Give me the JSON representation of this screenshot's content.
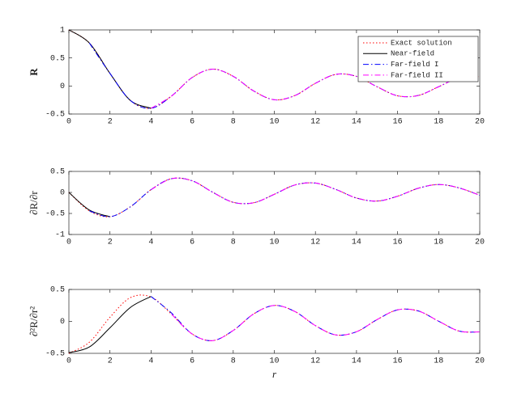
{
  "chart_data": [
    {
      "type": "line",
      "ylabel": "R",
      "legend": "upper right",
      "x": [
        0,
        1,
        2,
        3,
        4,
        5,
        6,
        7,
        8,
        9,
        10,
        11,
        12,
        13,
        14,
        15,
        16,
        17,
        18,
        19,
        20
      ],
      "xlim": [
        0,
        20
      ],
      "xticks": [
        0,
        2,
        4,
        6,
        8,
        10,
        12,
        14,
        16,
        18,
        20
      ],
      "ylim": [
        -0.5,
        1
      ],
      "yticks": [
        -0.5,
        0,
        0.5,
        1
      ],
      "series": [
        {
          "name": "Exact solution",
          "color": "#ff0000",
          "dash": "dotted",
          "values": [
            1,
            0.765,
            0.224,
            -0.26,
            -0.397,
            -0.178,
            0.151,
            0.3,
            0.172,
            -0.09,
            -0.246,
            -0.171,
            0.048,
            0.207,
            0.171,
            -0.014,
            -0.175,
            -0.17,
            -0.013,
            0.147,
            0.167
          ]
        },
        {
          "name": "Near-field",
          "color": "#000000",
          "dash": "solid",
          "values": [
            1,
            0.765,
            0.224,
            -0.26,
            -0.397,
            null,
            null,
            null,
            null,
            null,
            null,
            null,
            null,
            null,
            null,
            null,
            null,
            null,
            null,
            null,
            null
          ]
        },
        {
          "name": "Far-field I",
          "color": "#0000ff",
          "dash": "dashdot",
          "values": [
            null,
            0.765,
            0.224,
            -0.26,
            -0.397,
            -0.178,
            0.151,
            0.3,
            0.172,
            -0.09,
            -0.246,
            -0.171,
            0.048,
            0.207,
            0.171,
            -0.014,
            -0.175,
            -0.17,
            -0.013,
            0.147,
            0.167
          ]
        },
        {
          "name": "Far-field II",
          "color": "#ff00ff",
          "dash": "dashdot",
          "values": [
            null,
            null,
            null,
            null,
            -0.397,
            -0.178,
            0.151,
            0.3,
            0.172,
            -0.09,
            -0.246,
            -0.171,
            0.048,
            0.207,
            0.171,
            -0.014,
            -0.175,
            -0.17,
            -0.013,
            0.147,
            0.167
          ]
        }
      ]
    },
    {
      "type": "line",
      "ylabel": "∂R/∂r",
      "x": [
        0,
        1,
        2,
        3,
        4,
        5,
        6,
        7,
        8,
        9,
        10,
        11,
        12,
        13,
        14,
        15,
        16,
        17,
        18,
        19,
        20
      ],
      "xlim": [
        0,
        20
      ],
      "xticks": [
        0,
        2,
        4,
        6,
        8,
        10,
        12,
        14,
        16,
        18,
        20
      ],
      "ylim": [
        -1,
        0.5
      ],
      "yticks": [
        -1,
        -0.5,
        0,
        0.5
      ],
      "series": [
        {
          "name": "Exact solution",
          "color": "#ff0000",
          "dash": "dotted",
          "values": [
            0,
            -0.44,
            -0.577,
            -0.339,
            0.066,
            0.328,
            0.277,
            0.005,
            -0.235,
            -0.245,
            -0.044,
            0.177,
            0.223,
            0.07,
            -0.133,
            -0.205,
            -0.09,
            0.098,
            0.188,
            0.106,
            -0.067
          ]
        },
        {
          "name": "Near-field",
          "color": "#000000",
          "dash": "solid",
          "values": [
            0,
            -0.42,
            -0.577,
            null,
            null,
            null,
            null,
            null,
            null,
            null,
            null,
            null,
            null,
            null,
            null,
            null,
            null,
            null,
            null,
            null,
            null
          ]
        },
        {
          "name": "Far-field I",
          "color": "#0000ff",
          "dash": "dashdot",
          "values": [
            null,
            -0.44,
            -0.577,
            -0.339,
            0.066,
            0.328,
            0.277,
            0.005,
            -0.235,
            -0.245,
            -0.044,
            0.177,
            0.223,
            0.07,
            -0.133,
            -0.205,
            -0.09,
            0.098,
            0.188,
            0.106,
            -0.067
          ]
        },
        {
          "name": "Far-field II",
          "color": "#ff00ff",
          "dash": "dashdot",
          "values": [
            null,
            null,
            null,
            null,
            0.066,
            0.328,
            0.277,
            0.005,
            -0.235,
            -0.245,
            -0.044,
            0.177,
            0.223,
            0.07,
            -0.133,
            -0.205,
            -0.09,
            0.098,
            0.188,
            0.106,
            -0.067
          ]
        }
      ]
    },
    {
      "type": "line",
      "ylabel": "∂²R/∂r²",
      "xlabel": "r",
      "x": [
        0,
        1,
        2,
        3,
        4,
        5,
        6,
        7,
        8,
        9,
        10,
        11,
        12,
        13,
        14,
        15,
        16,
        17,
        18,
        19,
        20
      ],
      "xlim": [
        0,
        20
      ],
      "xticks": [
        0,
        2,
        4,
        6,
        8,
        10,
        12,
        14,
        16,
        18,
        20
      ],
      "ylim": [
        -0.5,
        0.5
      ],
      "yticks": [
        -0.5,
        0,
        0.5
      ],
      "series": [
        {
          "name": "Exact solution",
          "color": "#ff0000",
          "dash": "dotted",
          "values": [
            -0.5,
            -0.325,
            0.065,
            0.373,
            0.381,
            0.112,
            -0.197,
            -0.301,
            -0.142,
            0.118,
            0.25,
            0.155,
            -0.066,
            -0.212,
            -0.162,
            0.028,
            0.181,
            0.164,
            0.003,
            -0.152,
            -0.164
          ]
        },
        {
          "name": "Near-field",
          "color": "#000000",
          "dash": "solid",
          "values": [
            -0.49,
            -0.4,
            -0.1,
            0.22,
            0.39,
            null,
            null,
            null,
            null,
            null,
            null,
            null,
            null,
            null,
            null,
            null,
            null,
            null,
            null,
            null,
            null
          ]
        },
        {
          "name": "Far-field I",
          "color": "#0000ff",
          "dash": "dashdot",
          "values": [
            null,
            null,
            null,
            null,
            0.39,
            0.13,
            -0.197,
            -0.301,
            -0.142,
            0.118,
            0.25,
            0.155,
            -0.066,
            -0.212,
            -0.162,
            0.028,
            0.181,
            0.164,
            0.003,
            -0.152,
            -0.164
          ]
        },
        {
          "name": "Far-field II",
          "color": "#ff00ff",
          "dash": "dashdot",
          "values": [
            null,
            null,
            null,
            null,
            null,
            0.112,
            -0.197,
            -0.301,
            -0.142,
            0.118,
            0.25,
            0.155,
            -0.066,
            -0.212,
            -0.162,
            0.028,
            0.181,
            0.164,
            0.003,
            -0.152,
            -0.164
          ]
        }
      ]
    }
  ]
}
